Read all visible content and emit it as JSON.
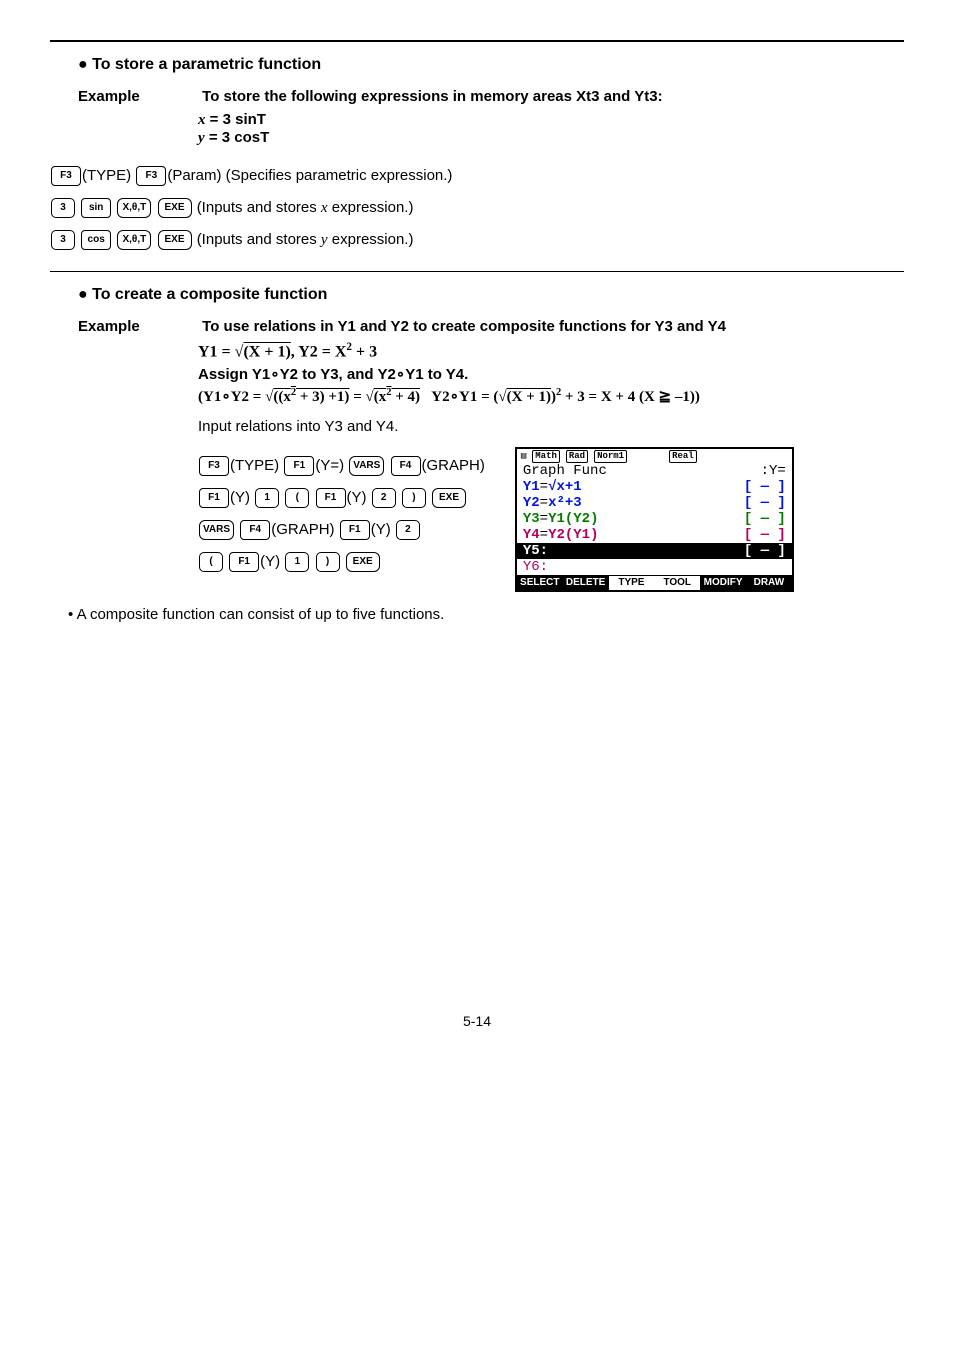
{
  "section1": {
    "title": "To store a parametric function",
    "example_label": "Example",
    "example_lead": "To store the following expressions in memory areas Xt3 and Yt3:",
    "eq1_lhs": "x",
    "eq1_rhs": " = 3 sinT",
    "eq2_lhs": "y",
    "eq2_rhs": " = 3 cosT",
    "line1_suffix": "(TYPE)",
    "line1_suffix2": "(Param) (Specifies parametric expression.)",
    "line2_suffix_a": "(Inputs and stores ",
    "line2_var": "x",
    "line2_suffix_b": " expression.)",
    "line3_suffix_a": "(Inputs and stores ",
    "line3_var": "y",
    "line3_suffix_b": " expression.)"
  },
  "section2": {
    "title": "To create a composite function",
    "example_label": "Example",
    "lead1": "To use relations in Y1 and Y2 to create composite functions for Y3 and Y4",
    "eq_defs": "Y1 = √(X + 1), Y2 = X² + 3",
    "assign": "Assign Y1∘Y2 to Y3, and Y2∘Y1 to Y4.",
    "expand": "(Y1∘Y2 = √((x² + 3) +1) = √(x² + 4)   Y2∘Y1 = (√(X + 1))² + 3 = X + 4 (X ≧ –1))",
    "input_note": "Input relations into Y3 and Y4.",
    "keyrow1_a": "(TYPE)",
    "keyrow1_b": "(Y=)",
    "keyrow1_c": "(GRAPH)",
    "keyrow2_y": "(Y)",
    "keyrow3_a": "(GRAPH)",
    "keyrow3_b": "(Y)"
  },
  "keys": {
    "F1": "F1",
    "F3": "F3",
    "F4": "F4",
    "three": "3",
    "one": "1",
    "two": "2",
    "sin": "sin",
    "cos": "cos",
    "xthetat": "X,θ,T",
    "exe": "EXE",
    "vars": "VARS",
    "lparen": "(",
    "rparen": ")"
  },
  "calc": {
    "chips": {
      "math": "Math",
      "rad": "Rad",
      "norm": "Norm1",
      "real": "Real"
    },
    "header_l": "Graph Func",
    "header_r": ":Y=",
    "rows": [
      {
        "l_pre": "Y1",
        "eq": "=",
        "body": "√x+1",
        "r": "[ — ]",
        "body_cls": "c-blue"
      },
      {
        "l_pre": "Y2",
        "eq": "=",
        "body": "x²+3",
        "r": "[ — ]",
        "body_cls": "c-blue"
      },
      {
        "l_pre": "Y3",
        "eq": "=",
        "body": "Y1(Y2)",
        "r": "[ — ]",
        "body_cls": "c-green"
      },
      {
        "l_pre": "Y4",
        "eq": "=",
        "body": "Y2(Y1)",
        "r": "[ — ]",
        "body_cls": "c-mag"
      }
    ],
    "row5_l": "Y5:",
    "row5_r": "[ — ]",
    "row6_l": "Y6:",
    "buttons": [
      {
        "t": "SELECT",
        "inv": true
      },
      {
        "t": "DELETE",
        "inv": true
      },
      {
        "t": "TYPE",
        "inv": false
      },
      {
        "t": "TOOL",
        "inv": false
      },
      {
        "t": "MODIFY",
        "inv": true
      },
      {
        "t": "DRAW",
        "inv": true
      }
    ]
  },
  "footnote": "A composite function can consist of up to five functions.",
  "page": "5-14"
}
